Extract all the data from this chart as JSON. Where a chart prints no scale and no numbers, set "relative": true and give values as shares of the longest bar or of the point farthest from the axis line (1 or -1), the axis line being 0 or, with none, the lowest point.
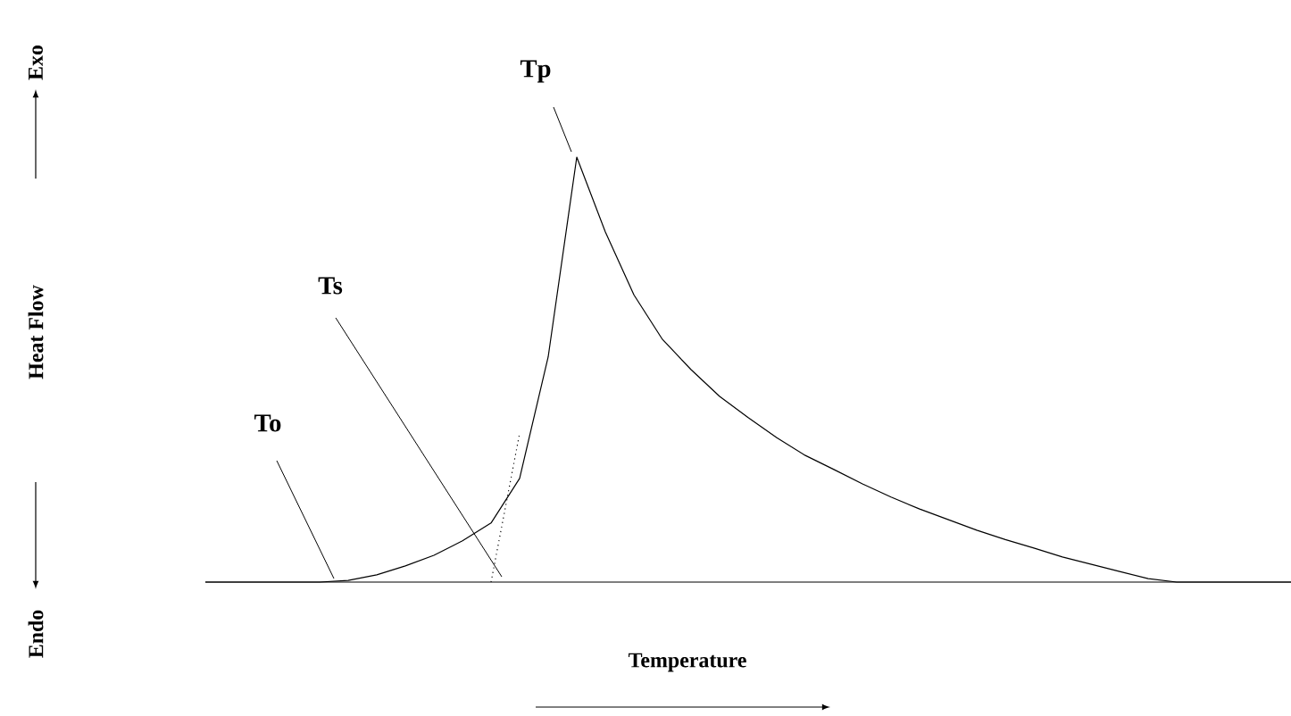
{
  "chart_data": {
    "type": "line",
    "relative": true,
    "xlabel": "Temperature",
    "annotations": [
      "To",
      "Ts",
      "Tp",
      "Exo",
      "Endo",
      "Heat Flow"
    ],
    "categories": [
      null,
      null,
      null,
      null,
      null,
      null,
      null,
      null,
      null,
      null,
      null,
      null,
      null,
      null,
      null,
      null,
      null,
      null,
      null,
      null,
      null,
      null,
      null,
      null,
      null,
      null,
      null,
      null,
      null,
      null,
      null,
      null,
      null,
      null,
      null,
      null,
      null,
      null,
      null
    ],
    "marker": "none",
    "grid": false,
    "legend": false,
    "series": [
      {
        "color": "#000000",
        "line_style": "solid",
        "values": [
          0,
          0,
          0,
          0,
          0,
          0.004,
          0.017,
          0.038,
          0.063,
          0.097,
          0.139,
          0.244,
          0.53,
          1,
          0.824,
          0.676,
          0.571,
          0.5,
          0.437,
          0.387,
          0.34,
          0.298,
          0.265,
          0.231,
          0.2,
          0.172,
          0.147,
          0.122,
          0.1,
          0.08,
          0.059,
          0.042,
          0.025,
          0.008,
          0,
          0,
          0,
          0,
          0
        ]
      },
      {
        "color": "#000000",
        "line_style": "dotted",
        "values": [
          null,
          null,
          null,
          null,
          null,
          null,
          null,
          null,
          null,
          null,
          0,
          0.35,
          null,
          null,
          null,
          null,
          null,
          null,
          null,
          null,
          null,
          null,
          null,
          null,
          null,
          null,
          null,
          null,
          null,
          null,
          null,
          null,
          null,
          null,
          null,
          null,
          null,
          null,
          null
        ]
      }
    ]
  }
}
